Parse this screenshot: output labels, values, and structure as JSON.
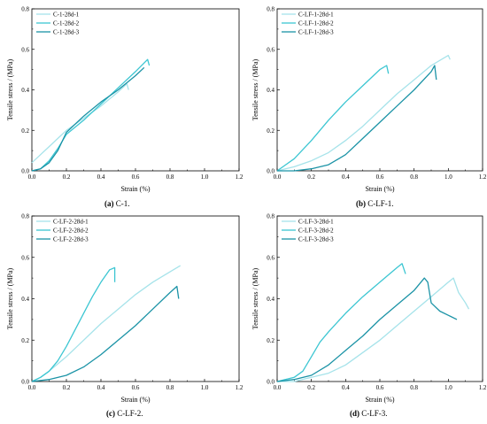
{
  "panels": [
    {
      "caption_letter": "(a)",
      "caption_text": " C-1.",
      "xlabel": "Strain (%)",
      "ylabel": "Tensile stress / (MPa)",
      "legend": [
        "C-1-28d-1",
        "C-1-28d-2",
        "C-1-28d-3"
      ]
    },
    {
      "caption_letter": "(b)",
      "caption_text": " C-LF-1.",
      "xlabel": "Strain (%)",
      "ylabel": "Tensile stress / (MPa)",
      "legend": [
        "C-LF-1-28d-1",
        "C-LF-1-28d-2",
        "C-LF-1-28d-3"
      ]
    },
    {
      "caption_letter": "(c)",
      "caption_text": " C-LF-2.",
      "xlabel": "Strain (%)",
      "ylabel": "Tensile stress / (MPa)",
      "legend": [
        "C-LF-2-28d-1",
        "C-LF-2-28d-2",
        "C-LF-2-28d-3"
      ]
    },
    {
      "caption_letter": "(d)",
      "caption_text": " C-LF-3.",
      "xlabel": "Strain (%)",
      "ylabel": "Tensile stress / (MPa)",
      "legend": [
        "C-LF-3-28d-1",
        "C-LF-3-28d-2",
        "C-LF-3-28d-3"
      ]
    }
  ],
  "colors": {
    "series1": "#a6e3ea",
    "series2": "#3cc6d2",
    "series3": "#1b93a6"
  },
  "chart_data": [
    {
      "type": "line",
      "xlim": [
        0,
        1.2
      ],
      "ylim": [
        0,
        0.8
      ],
      "xticks": [
        "0.0",
        "0.2",
        "0.4",
        "0.6",
        "0.8",
        "1.0",
        "1.2"
      ],
      "yticks": [
        "0.0",
        "0.2",
        "0.4",
        "0.6",
        "0.8"
      ],
      "series": [
        {
          "name": "C-1-28d-1",
          "x": [
            0,
            0.05,
            0.1,
            0.15,
            0.2,
            0.3,
            0.4,
            0.5,
            0.55,
            0.56
          ],
          "y": [
            0.04,
            0.08,
            0.12,
            0.16,
            0.2,
            0.26,
            0.32,
            0.39,
            0.43,
            0.4
          ]
        },
        {
          "name": "C-1-28d-2",
          "x": [
            0,
            0.05,
            0.1,
            0.15,
            0.2,
            0.3,
            0.4,
            0.5,
            0.6,
            0.67,
            0.68
          ],
          "y": [
            0,
            0.01,
            0.05,
            0.11,
            0.18,
            0.25,
            0.33,
            0.41,
            0.49,
            0.55,
            0.52
          ]
        },
        {
          "name": "C-1-28d-3",
          "x": [
            0,
            0.05,
            0.1,
            0.15,
            0.2,
            0.3,
            0.4,
            0.5,
            0.6,
            0.65
          ],
          "y": [
            0,
            0.01,
            0.04,
            0.1,
            0.19,
            0.27,
            0.34,
            0.4,
            0.47,
            0.51
          ]
        }
      ]
    },
    {
      "type": "line",
      "xlim": [
        0,
        1.2
      ],
      "ylim": [
        0,
        0.8
      ],
      "xticks": [
        "0.0",
        "0.2",
        "0.4",
        "0.6",
        "0.8",
        "1.0",
        "1.2"
      ],
      "yticks": [
        "0.0",
        "0.2",
        "0.4",
        "0.6",
        "0.8"
      ],
      "series": [
        {
          "name": "C-LF-1-28d-1",
          "x": [
            0,
            0.1,
            0.2,
            0.3,
            0.4,
            0.5,
            0.6,
            0.7,
            0.8,
            0.9,
            1.0,
            1.01
          ],
          "y": [
            0,
            0.02,
            0.05,
            0.09,
            0.15,
            0.22,
            0.3,
            0.38,
            0.45,
            0.52,
            0.57,
            0.55
          ]
        },
        {
          "name": "C-LF-1-28d-2",
          "x": [
            0,
            0.05,
            0.1,
            0.2,
            0.3,
            0.4,
            0.5,
            0.6,
            0.64,
            0.65
          ],
          "y": [
            0,
            0.03,
            0.06,
            0.15,
            0.25,
            0.34,
            0.42,
            0.5,
            0.52,
            0.48
          ]
        },
        {
          "name": "C-LF-1-28d-3",
          "x": [
            0,
            0.1,
            0.2,
            0.3,
            0.4,
            0.5,
            0.6,
            0.7,
            0.8,
            0.9,
            0.92,
            0.93
          ],
          "y": [
            0,
            0.0,
            0.01,
            0.03,
            0.08,
            0.16,
            0.24,
            0.32,
            0.4,
            0.49,
            0.52,
            0.45
          ]
        }
      ]
    },
    {
      "type": "line",
      "xlim": [
        0,
        1.2
      ],
      "ylim": [
        0,
        0.8
      ],
      "xticks": [
        "0.0",
        "0.2",
        "0.4",
        "0.6",
        "0.8",
        "1.0",
        "1.2"
      ],
      "yticks": [
        "0.0",
        "0.2",
        "0.4",
        "0.6",
        "0.8"
      ],
      "series": [
        {
          "name": "C-LF-2-28d-1",
          "x": [
            0,
            0.05,
            0.1,
            0.2,
            0.3,
            0.4,
            0.5,
            0.6,
            0.7,
            0.8,
            0.86
          ],
          "y": [
            0,
            0.02,
            0.05,
            0.12,
            0.2,
            0.28,
            0.35,
            0.42,
            0.48,
            0.53,
            0.56
          ]
        },
        {
          "name": "C-LF-2-28d-2",
          "x": [
            0,
            0.05,
            0.1,
            0.15,
            0.2,
            0.25,
            0.3,
            0.35,
            0.4,
            0.45,
            0.48,
            0.48
          ],
          "y": [
            0,
            0.02,
            0.05,
            0.1,
            0.17,
            0.25,
            0.33,
            0.41,
            0.48,
            0.54,
            0.55,
            0.48
          ]
        },
        {
          "name": "C-LF-2-28d-3",
          "x": [
            0,
            0.1,
            0.2,
            0.3,
            0.4,
            0.5,
            0.6,
            0.7,
            0.8,
            0.84,
            0.85
          ],
          "y": [
            0,
            0.01,
            0.03,
            0.07,
            0.13,
            0.2,
            0.27,
            0.35,
            0.43,
            0.46,
            0.4
          ]
        }
      ]
    },
    {
      "type": "line",
      "xlim": [
        0,
        1.2
      ],
      "ylim": [
        0,
        0.8
      ],
      "xticks": [
        "0.0",
        "0.2",
        "0.4",
        "0.6",
        "0.8",
        "1.0",
        "1.2"
      ],
      "yticks": [
        "0.0",
        "0.2",
        "0.4",
        "0.6",
        "0.8"
      ],
      "series": [
        {
          "name": "C-LF-3-28d-1",
          "x": [
            0,
            0.1,
            0.2,
            0.3,
            0.4,
            0.5,
            0.6,
            0.7,
            0.8,
            0.9,
            1.0,
            1.03,
            1.06,
            1.1,
            1.12
          ],
          "y": [
            0,
            0.0,
            0.02,
            0.04,
            0.08,
            0.14,
            0.2,
            0.27,
            0.34,
            0.41,
            0.48,
            0.5,
            0.43,
            0.38,
            0.35
          ]
        },
        {
          "name": "C-LF-3-28d-2",
          "x": [
            0,
            0.1,
            0.15,
            0.2,
            0.25,
            0.3,
            0.4,
            0.5,
            0.6,
            0.7,
            0.73,
            0.75
          ],
          "y": [
            0,
            0.02,
            0.05,
            0.12,
            0.19,
            0.24,
            0.33,
            0.41,
            0.48,
            0.55,
            0.57,
            0.52
          ]
        },
        {
          "name": "C-LF-3-28d-3",
          "x": [
            0,
            0.1,
            0.2,
            0.3,
            0.4,
            0.5,
            0.6,
            0.7,
            0.8,
            0.86,
            0.88,
            0.9,
            0.95,
            1.0,
            1.05
          ],
          "y": [
            0,
            0.01,
            0.03,
            0.08,
            0.15,
            0.22,
            0.3,
            0.37,
            0.44,
            0.5,
            0.48,
            0.38,
            0.34,
            0.32,
            0.3
          ]
        }
      ]
    }
  ]
}
